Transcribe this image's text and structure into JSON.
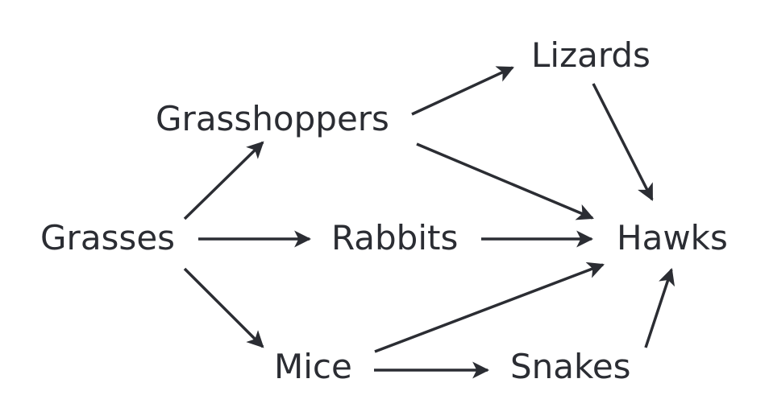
{
  "diagram": {
    "type": "food-web",
    "colors": {
      "text": "#2b2d33",
      "edge": "#2b2d33",
      "background": "#ffffff"
    },
    "nodes": [
      {
        "id": "grasses",
        "label": "Grasses"
      },
      {
        "id": "grasshoppers",
        "label": "Grasshoppers"
      },
      {
        "id": "rabbits",
        "label": "Rabbits"
      },
      {
        "id": "mice",
        "label": "Mice"
      },
      {
        "id": "lizards",
        "label": "Lizards"
      },
      {
        "id": "snakes",
        "label": "Snakes"
      },
      {
        "id": "hawks",
        "label": "Hawks"
      }
    ],
    "edges": [
      {
        "from": "grasses",
        "to": "grasshoppers"
      },
      {
        "from": "grasses",
        "to": "rabbits"
      },
      {
        "from": "grasses",
        "to": "mice"
      },
      {
        "from": "grasshoppers",
        "to": "lizards"
      },
      {
        "from": "grasshoppers",
        "to": "hawks"
      },
      {
        "from": "rabbits",
        "to": "hawks"
      },
      {
        "from": "mice",
        "to": "hawks"
      },
      {
        "from": "mice",
        "to": "snakes"
      },
      {
        "from": "lizards",
        "to": "hawks"
      },
      {
        "from": "snakes",
        "to": "hawks"
      }
    ]
  }
}
